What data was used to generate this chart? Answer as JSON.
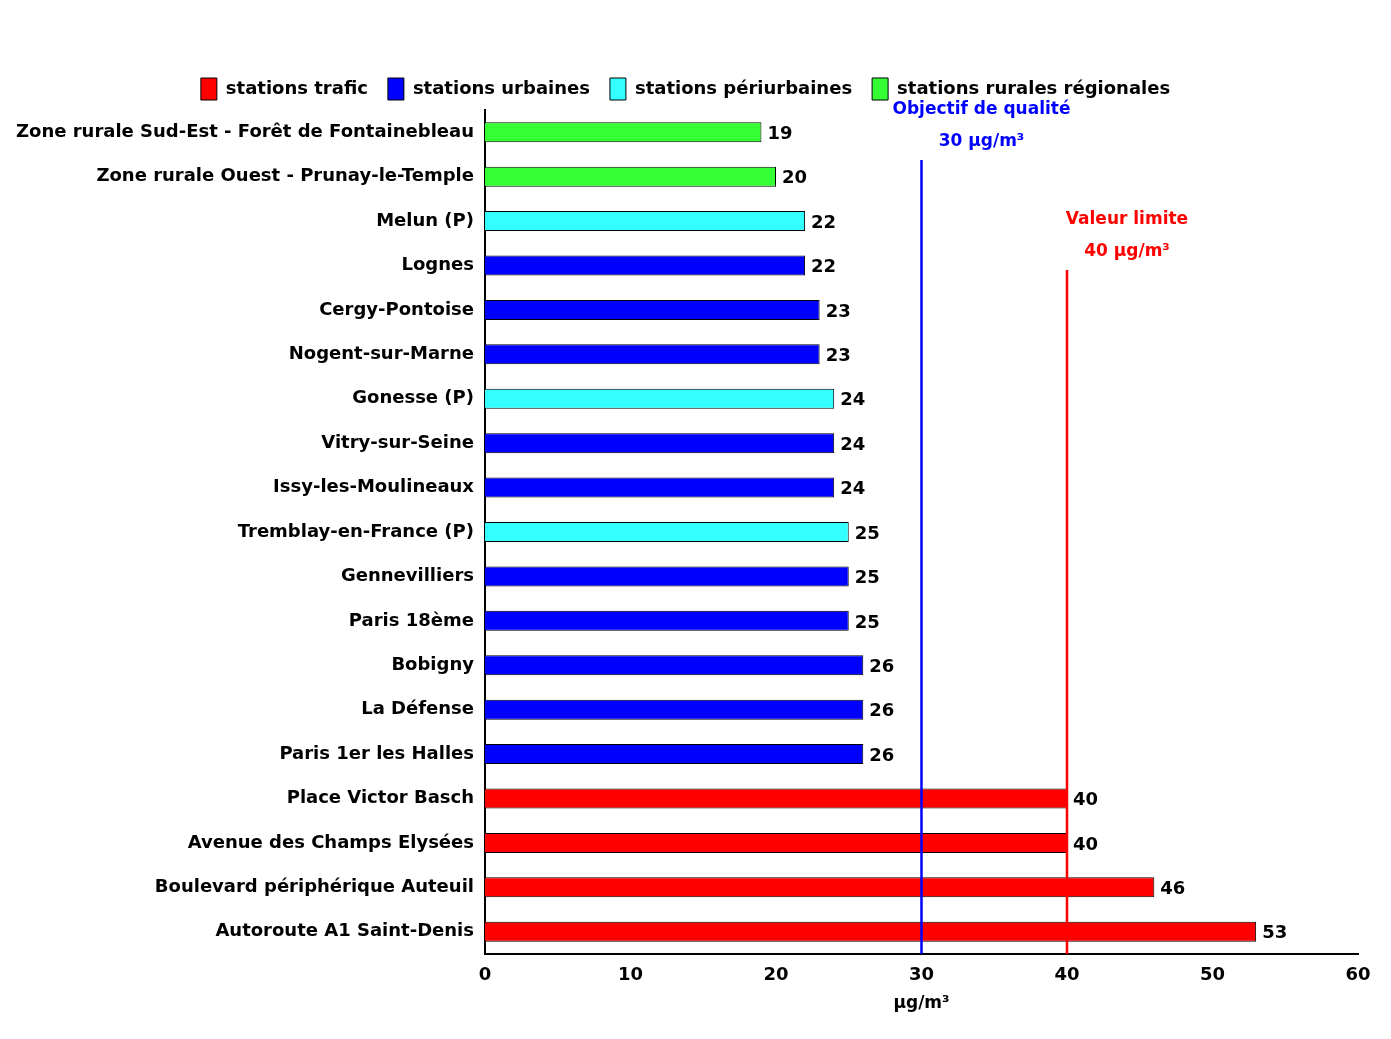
{
  "chart_data": {
    "type": "bar",
    "orientation": "horizontal",
    "stacked": true,
    "categories": [
      "Zone rurale Sud-Est - Forêt de Fontainebleau",
      "Zone rurale Ouest - Prunay-le-Temple",
      "Melun (P)",
      "Lognes",
      "Cergy-Pontoise",
      "Nogent-sur-Marne",
      "Gonesse (P)",
      "Vitry-sur-Seine",
      "Issy-les-Moulineaux",
      "Tremblay-en-France (P)",
      "Gennevilliers",
      "Paris 18ème",
      "Bobigny",
      "La Défense",
      "Paris 1er les Halles",
      "Place Victor Basch",
      "Avenue des Champs Elysées",
      "Boulevard périphérique Auteuil",
      "Autoroute A1 Saint-Denis"
    ],
    "series": [
      {
        "name": "stations trafic",
        "color": "#ff0000",
        "values": [
          null,
          null,
          null,
          null,
          null,
          null,
          null,
          null,
          null,
          null,
          null,
          null,
          null,
          null,
          null,
          40,
          40,
          46,
          53
        ]
      },
      {
        "name": "stations urbaines",
        "color": "#0000ff",
        "values": [
          null,
          null,
          null,
          22,
          23,
          23,
          null,
          24,
          24,
          null,
          25,
          25,
          26,
          26,
          26,
          null,
          null,
          null,
          null
        ]
      },
      {
        "name": "stations périurbaines",
        "color": "#33ffff",
        "values": [
          null,
          null,
          22,
          null,
          null,
          null,
          24,
          null,
          null,
          25,
          null,
          null,
          null,
          null,
          null,
          null,
          null,
          null,
          null
        ]
      },
      {
        "name": "stations rurales régionales",
        "color": "#33ff33",
        "values": [
          19,
          20,
          null,
          null,
          null,
          null,
          null,
          null,
          null,
          null,
          null,
          null,
          null,
          null,
          null,
          null,
          null,
          null,
          null
        ]
      }
    ],
    "xlabel": "µg/m³",
    "xlim": [
      0,
      60
    ],
    "xticks": [
      0,
      10,
      20,
      30,
      40,
      50,
      60
    ],
    "ref_lines": [
      {
        "axis": "x",
        "value": 30,
        "label": "Objectif de qualité\n30 µg/m³",
        "color": "#0000ff"
      },
      {
        "axis": "x",
        "value": 40,
        "label": "Valeur limite\n40 µg/m³",
        "color": "#ff0000"
      }
    ],
    "data_labels": true,
    "grid": false,
    "legend": "top"
  }
}
